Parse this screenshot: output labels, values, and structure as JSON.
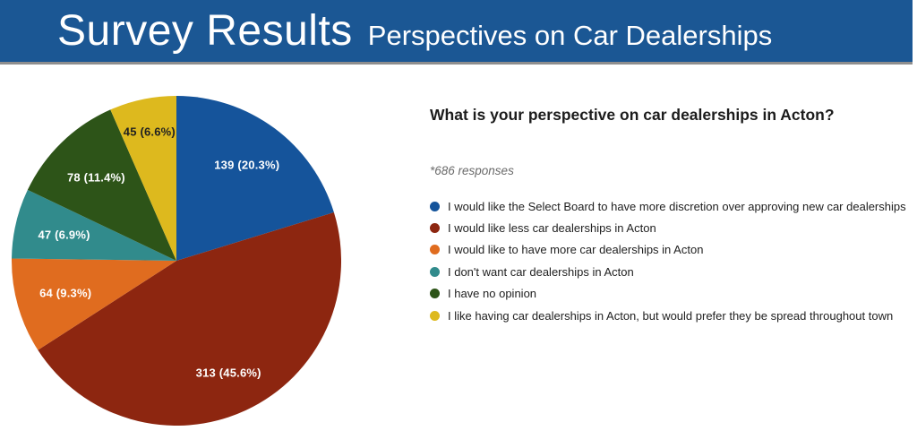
{
  "banner": {
    "title": "Survey Results",
    "subtitle": "Perspectives on Car Dealerships",
    "background_color": "#1B5794",
    "border_color": "#8E8E8E"
  },
  "question": {
    "title": "What is your perspective on car dealerships in Acton?",
    "responses_note": "*686 responses"
  },
  "chart_data": {
    "type": "pie",
    "title": "What is your perspective on car dealerships in Acton?",
    "total_responses": 686,
    "legend_position": "right",
    "start_angle_deg": 0,
    "direction": "clockwise",
    "slices": [
      {
        "label": "I would like the Select Board to have more discretion over approving new car dealerships",
        "value": 139,
        "pct": 20.3,
        "data_label": "139 (20.3%)",
        "color": "#15549B",
        "label_color": "#FFFFFF"
      },
      {
        "label": "I would like less car dealerships in Acton",
        "value": 313,
        "pct": 45.6,
        "data_label": "313 (45.6%)",
        "color": "#8D2610",
        "label_color": "#FFFFFF"
      },
      {
        "label": "I would like to have more car dealerships in Acton",
        "value": 64,
        "pct": 9.3,
        "data_label": "64 (9.3%)",
        "color": "#E06C1F",
        "label_color": "#FFFFFF"
      },
      {
        "label": "I don't want car dealerships in Acton",
        "value": 47,
        "pct": 6.9,
        "data_label": "47 (6.9%)",
        "color": "#318B8C",
        "label_color": "#FFFFFF"
      },
      {
        "label": "I have no opinion",
        "value": 78,
        "pct": 11.4,
        "data_label": "78 (11.4%)",
        "color": "#2D5418",
        "label_color": "#FFFFFF"
      },
      {
        "label": "I like having car dealerships in Acton, but would prefer they be spread throughout town",
        "value": 45,
        "pct": 6.6,
        "data_label": "45 (6.6%)",
        "color": "#DDB91E",
        "label_color": "#212121"
      }
    ]
  }
}
